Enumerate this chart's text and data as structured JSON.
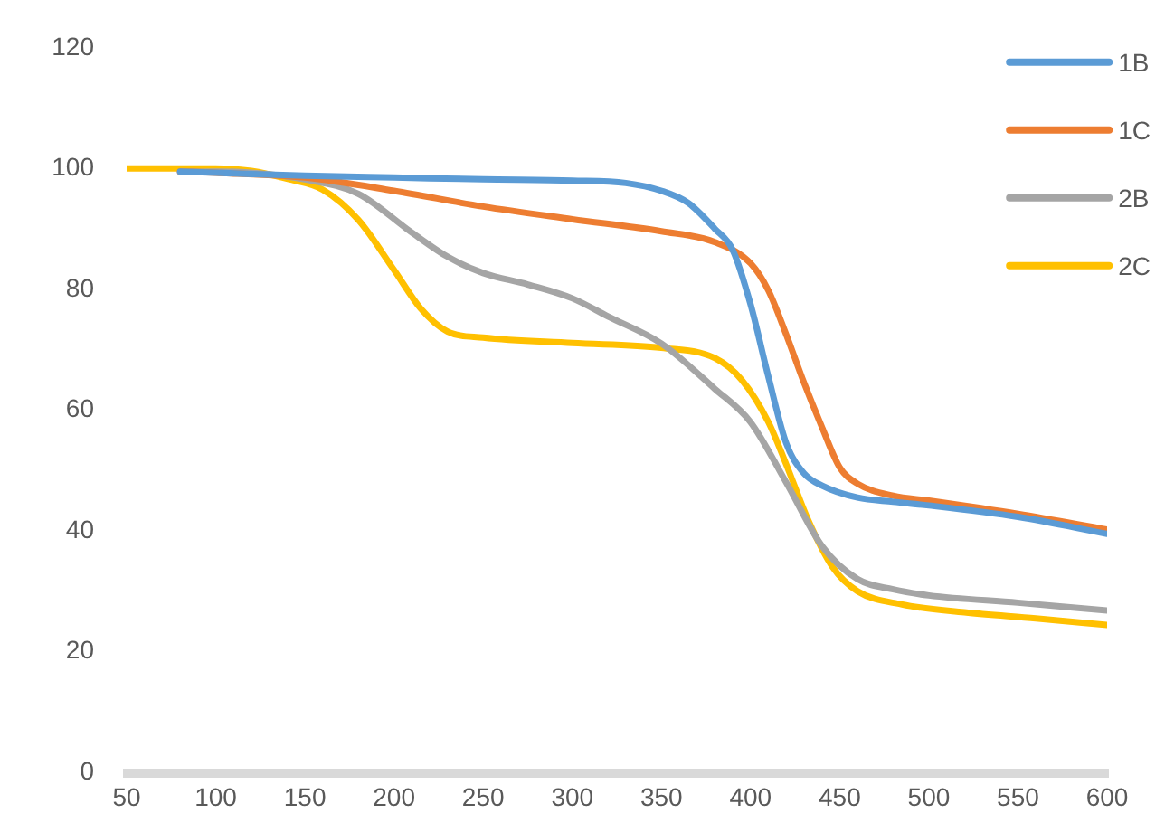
{
  "chart_data": {
    "type": "line",
    "xlim": [
      50,
      600
    ],
    "xticks": [
      50,
      100,
      150,
      200,
      250,
      300,
      350,
      400,
      450,
      500,
      550,
      600
    ],
    "ylim": [
      0,
      120
    ],
    "yticks": [
      0,
      20,
      40,
      60,
      80,
      100,
      120
    ],
    "legend": "top right",
    "marker": "none",
    "series": [
      {
        "name": "1B",
        "color": "#5b9bd5",
        "x": [
          80,
          100,
          150,
          200,
          250,
          300,
          330,
          350,
          365,
          380,
          390,
          400,
          410,
          420,
          430,
          440,
          460,
          480,
          500,
          550,
          600
        ],
        "values": [
          99.5,
          99.3,
          98.8,
          98.5,
          98.2,
          98.0,
          97.6,
          96.3,
          94.3,
          90.0,
          86.5,
          77.5,
          65.5,
          54.5,
          49.5,
          47.5,
          45.5,
          44.8,
          44.2,
          42.3,
          39.5
        ]
      },
      {
        "name": "1C",
        "color": "#ed7d31",
        "x": [
          80,
          100,
          150,
          200,
          250,
          300,
          350,
          380,
          400,
          410,
          420,
          430,
          440,
          450,
          460,
          480,
          500,
          550,
          600
        ],
        "values": [
          99.5,
          99.3,
          98.5,
          96.3,
          93.7,
          91.6,
          89.6,
          87.8,
          84.3,
          79.8,
          72.5,
          64.5,
          57.2,
          50.5,
          47.8,
          45.8,
          45.0,
          42.8,
          40.2
        ]
      },
      {
        "name": "2B",
        "color": "#a5a5a5",
        "x": [
          80,
          100,
          120,
          150,
          180,
          210,
          230,
          250,
          275,
          300,
          320,
          350,
          380,
          400,
          420,
          440,
          460,
          480,
          500,
          550,
          600
        ],
        "values": [
          99.4,
          99.5,
          99.3,
          98.2,
          95.8,
          89.4,
          85.4,
          82.7,
          80.8,
          78.5,
          75.5,
          71.0,
          63.5,
          58.0,
          48.0,
          37.5,
          32.0,
          30.3,
          29.3,
          28.1,
          26.8
        ]
      },
      {
        "name": "2C",
        "color": "#ffc000",
        "x": [
          50,
          100,
          120,
          140,
          160,
          180,
          200,
          215,
          230,
          250,
          300,
          350,
          380,
          395,
          410,
          420,
          432,
          446,
          460,
          485,
          520,
          560,
          600
        ],
        "values": [
          100,
          100,
          99.6,
          98.3,
          96.5,
          91.5,
          83.2,
          76.8,
          73.0,
          72.0,
          71.1,
          70.3,
          68.6,
          65.0,
          58.0,
          51.0,
          42.0,
          34.0,
          30.0,
          27.8,
          26.5,
          25.5,
          24.4
        ]
      }
    ]
  }
}
